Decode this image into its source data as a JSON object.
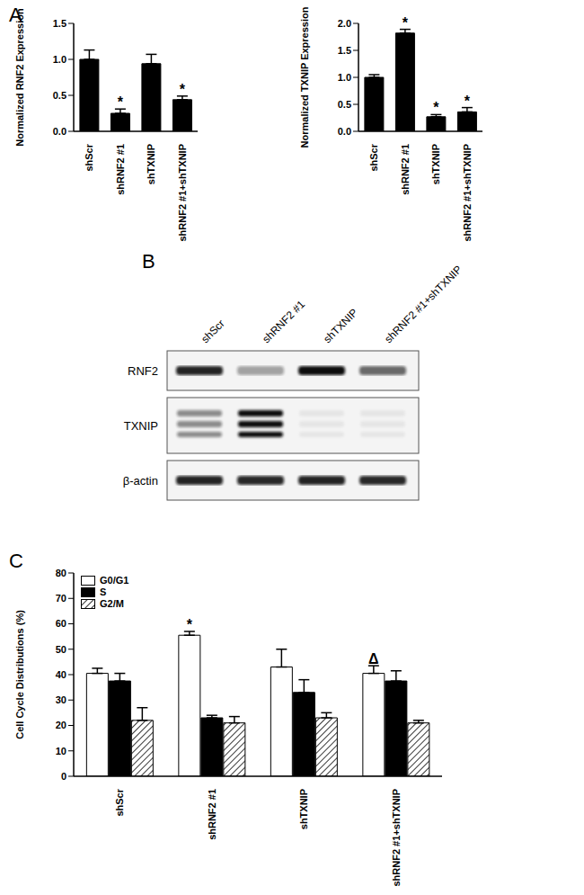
{
  "chart_data": [
    {
      "panel": "A",
      "type": "bar",
      "y_label": "Normalized RNF2 Expression",
      "categories": [
        "shScr",
        "shRNF2 #1",
        "shTXNIP",
        "shRNF2 #1+shTXNIP"
      ],
      "values": [
        1.0,
        0.25,
        0.94,
        0.44
      ],
      "errors": [
        0.13,
        0.06,
        0.13,
        0.05
      ],
      "significance": [
        null,
        "*",
        null,
        "*"
      ],
      "color": "#000000",
      "ylim": [
        0,
        1.5
      ],
      "yticks": [
        {
          "value": 0,
          "label": "0.0"
        },
        {
          "value": 0.5,
          "label": "0.5"
        },
        {
          "value": 1,
          "label": "1.0"
        },
        {
          "value": 1.5,
          "label": "1.5"
        }
      ],
      "grid": false
    },
    {
      "type": "bar",
      "y_label": "Normalized TXNIP Expression",
      "categories": [
        "shScr",
        "shRNF2 #1",
        "shTXNIP",
        "shRNF2 #1+shTXNIP"
      ],
      "values": [
        1.0,
        1.82,
        0.27,
        0.36
      ],
      "errors": [
        0.05,
        0.07,
        0.04,
        0.08
      ],
      "significance": [
        null,
        "*",
        "*",
        "*"
      ],
      "color": "#000000",
      "ylim": [
        0,
        2
      ],
      "yticks": [
        {
          "value": 0,
          "label": "0.0"
        },
        {
          "value": 0.5,
          "label": "0.5"
        },
        {
          "value": 1,
          "label": "1.0"
        },
        {
          "value": 1.5,
          "label": "1.5"
        },
        {
          "value": 2,
          "label": "2.0"
        }
      ],
      "grid": false
    },
    {
      "panel": "C",
      "type": "bar",
      "y_label": "Cell Cycle Distributions (%)",
      "categories": [
        "shScr",
        "shRNF2 #1",
        "shTXNIP",
        "shRNF2 #1+shTXNIP"
      ],
      "series": [
        {
          "name": "G0/G1",
          "color": "#ffffff",
          "values": [
            40.5,
            55.5,
            43,
            40.5
          ],
          "errors": [
            2,
            1.5,
            7,
            3
          ],
          "significance": [
            null,
            "*",
            null,
            "Δ"
          ]
        },
        {
          "name": "S",
          "color": "#000000",
          "values": [
            37.5,
            23,
            33,
            37.5
          ],
          "errors": [
            3,
            1,
            5,
            4
          ],
          "significance": [
            null,
            null,
            null,
            null
          ]
        },
        {
          "name": "G2/M",
          "color": "#000000",
          "line_style": "hatched",
          "values": [
            22,
            21,
            23,
            21
          ],
          "errors": [
            5,
            2.5,
            2,
            1
          ],
          "significance": [
            null,
            null,
            null,
            null
          ]
        }
      ],
      "ylim": [
        0,
        80
      ],
      "yticks": [
        0,
        10,
        20,
        30,
        40,
        50,
        60,
        70,
        80
      ],
      "legend": "upper left",
      "grid": false
    }
  ],
  "blot": {
    "panel": "B",
    "lanes": [
      "shScr",
      "shRNF2 #1",
      "shTXNIP",
      "shRNF2 #1+shTXNIP"
    ],
    "rows": [
      "RNF2",
      "TXNIP",
      "β-actin"
    ]
  }
}
